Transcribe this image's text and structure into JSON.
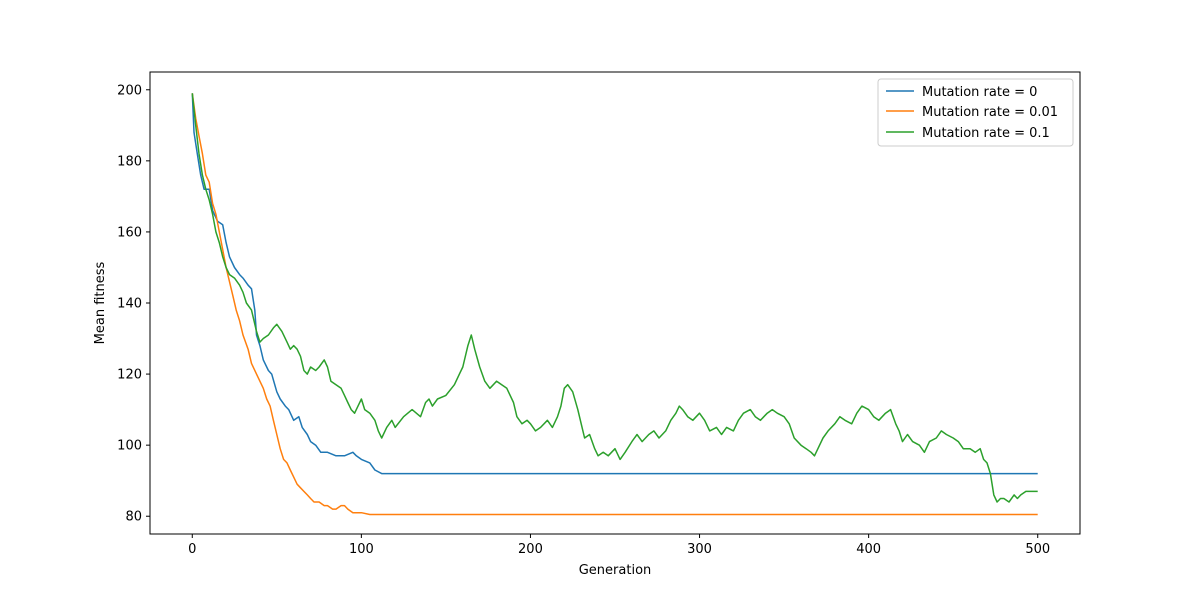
{
  "chart_data": {
    "type": "line",
    "title": "",
    "xlabel": "Generation",
    "ylabel": "Mean fitness",
    "xlim": [
      -25,
      525
    ],
    "ylim": [
      75,
      205
    ],
    "xticks": [
      0,
      100,
      200,
      300,
      400,
      500
    ],
    "yticks": [
      80,
      100,
      120,
      140,
      160,
      180,
      200
    ],
    "xtick_labels": [
      "0",
      "100",
      "200",
      "300",
      "400",
      "500"
    ],
    "ytick_labels": [
      "80",
      "100",
      "120",
      "140",
      "160",
      "180",
      "200"
    ],
    "grid": false,
    "legend_position": "top-right",
    "series": [
      {
        "name": "Mutation rate = 0",
        "color": "#1f77b4",
        "points": [
          [
            0,
            199
          ],
          [
            1,
            188
          ],
          [
            3,
            182
          ],
          [
            5,
            176
          ],
          [
            7,
            172
          ],
          [
            10,
            172
          ],
          [
            12,
            166
          ],
          [
            15,
            163
          ],
          [
            18,
            162
          ],
          [
            20,
            157
          ],
          [
            22,
            153
          ],
          [
            25,
            150
          ],
          [
            28,
            148
          ],
          [
            30,
            147
          ],
          [
            33,
            145
          ],
          [
            35,
            144
          ],
          [
            37,
            138
          ],
          [
            38,
            131
          ],
          [
            40,
            128
          ],
          [
            42,
            124
          ],
          [
            45,
            121
          ],
          [
            47,
            120
          ],
          [
            50,
            115
          ],
          [
            52,
            113
          ],
          [
            55,
            111
          ],
          [
            57,
            110
          ],
          [
            60,
            107
          ],
          [
            63,
            108
          ],
          [
            65,
            105
          ],
          [
            68,
            103
          ],
          [
            70,
            101
          ],
          [
            73,
            100
          ],
          [
            76,
            98
          ],
          [
            80,
            98
          ],
          [
            85,
            97
          ],
          [
            90,
            97
          ],
          [
            95,
            98
          ],
          [
            97,
            97
          ],
          [
            100,
            96
          ],
          [
            105,
            95
          ],
          [
            108,
            93
          ],
          [
            112,
            92
          ],
          [
            120,
            92
          ],
          [
            200,
            92
          ],
          [
            300,
            92
          ],
          [
            400,
            92
          ],
          [
            500,
            92
          ]
        ]
      },
      {
        "name": "Mutation rate = 0.01",
        "color": "#ff7f0e",
        "points": [
          [
            0,
            199
          ],
          [
            2,
            192
          ],
          [
            4,
            187
          ],
          [
            6,
            182
          ],
          [
            8,
            176
          ],
          [
            10,
            174
          ],
          [
            12,
            168
          ],
          [
            14,
            165
          ],
          [
            16,
            160
          ],
          [
            18,
            155
          ],
          [
            20,
            150
          ],
          [
            22,
            146
          ],
          [
            24,
            142
          ],
          [
            26,
            138
          ],
          [
            28,
            135
          ],
          [
            30,
            131
          ],
          [
            33,
            127
          ],
          [
            35,
            123
          ],
          [
            38,
            120
          ],
          [
            40,
            118
          ],
          [
            42,
            116
          ],
          [
            44,
            113
          ],
          [
            46,
            111
          ],
          [
            48,
            107
          ],
          [
            50,
            103
          ],
          [
            52,
            99
          ],
          [
            54,
            96
          ],
          [
            56,
            95
          ],
          [
            58,
            93
          ],
          [
            60,
            91
          ],
          [
            62,
            89
          ],
          [
            64,
            88
          ],
          [
            66,
            87
          ],
          [
            68,
            86
          ],
          [
            70,
            85
          ],
          [
            72,
            84
          ],
          [
            75,
            84
          ],
          [
            78,
            83
          ],
          [
            80,
            83
          ],
          [
            83,
            82
          ],
          [
            85,
            82
          ],
          [
            88,
            83
          ],
          [
            90,
            83
          ],
          [
            92,
            82
          ],
          [
            95,
            81
          ],
          [
            100,
            81
          ],
          [
            105,
            80.5
          ],
          [
            110,
            80.5
          ],
          [
            120,
            80.5
          ],
          [
            150,
            80.5
          ],
          [
            200,
            80.5
          ],
          [
            250,
            80.5
          ],
          [
            300,
            80.5
          ],
          [
            350,
            80.5
          ],
          [
            400,
            80.5
          ],
          [
            450,
            80.5
          ],
          [
            500,
            80.5
          ]
        ]
      },
      {
        "name": "Mutation rate = 0.1",
        "color": "#2ca02c",
        "points": [
          [
            0,
            199
          ],
          [
            2,
            190
          ],
          [
            4,
            182
          ],
          [
            6,
            176
          ],
          [
            8,
            172
          ],
          [
            10,
            169
          ],
          [
            12,
            165
          ],
          [
            14,
            160
          ],
          [
            16,
            157
          ],
          [
            18,
            153
          ],
          [
            20,
            150
          ],
          [
            22,
            148
          ],
          [
            25,
            147
          ],
          [
            28,
            145
          ],
          [
            30,
            143
          ],
          [
            32,
            140
          ],
          [
            35,
            138
          ],
          [
            38,
            132
          ],
          [
            40,
            129
          ],
          [
            42,
            130
          ],
          [
            45,
            131
          ],
          [
            48,
            133
          ],
          [
            50,
            134
          ],
          [
            53,
            132
          ],
          [
            56,
            129
          ],
          [
            58,
            127
          ],
          [
            60,
            128
          ],
          [
            62,
            127
          ],
          [
            64,
            125
          ],
          [
            66,
            121
          ],
          [
            68,
            120
          ],
          [
            70,
            122
          ],
          [
            73,
            121
          ],
          [
            75,
            122
          ],
          [
            78,
            124
          ],
          [
            80,
            122
          ],
          [
            82,
            118
          ],
          [
            85,
            117
          ],
          [
            88,
            116
          ],
          [
            90,
            114
          ],
          [
            92,
            112
          ],
          [
            94,
            110
          ],
          [
            96,
            109
          ],
          [
            98,
            111
          ],
          [
            100,
            113
          ],
          [
            102,
            110
          ],
          [
            105,
            109
          ],
          [
            108,
            107
          ],
          [
            110,
            104
          ],
          [
            112,
            102
          ],
          [
            115,
            105
          ],
          [
            118,
            107
          ],
          [
            120,
            105
          ],
          [
            125,
            108
          ],
          [
            130,
            110
          ],
          [
            135,
            108
          ],
          [
            138,
            112
          ],
          [
            140,
            113
          ],
          [
            142,
            111
          ],
          [
            145,
            113
          ],
          [
            150,
            114
          ],
          [
            155,
            117
          ],
          [
            158,
            120
          ],
          [
            160,
            122
          ],
          [
            163,
            128
          ],
          [
            165,
            131
          ],
          [
            167,
            127
          ],
          [
            170,
            122
          ],
          [
            173,
            118
          ],
          [
            176,
            116
          ],
          [
            180,
            118
          ],
          [
            183,
            117
          ],
          [
            186,
            116
          ],
          [
            190,
            112
          ],
          [
            192,
            108
          ],
          [
            195,
            106
          ],
          [
            198,
            107
          ],
          [
            200,
            106
          ],
          [
            203,
            104
          ],
          [
            206,
            105
          ],
          [
            210,
            107
          ],
          [
            213,
            105
          ],
          [
            216,
            108
          ],
          [
            218,
            111
          ],
          [
            220,
            116
          ],
          [
            222,
            117
          ],
          [
            225,
            115
          ],
          [
            228,
            110
          ],
          [
            230,
            106
          ],
          [
            232,
            102
          ],
          [
            235,
            103
          ],
          [
            238,
            99
          ],
          [
            240,
            97
          ],
          [
            243,
            98
          ],
          [
            246,
            97
          ],
          [
            250,
            99
          ],
          [
            253,
            96
          ],
          [
            256,
            98
          ],
          [
            260,
            101
          ],
          [
            263,
            103
          ],
          [
            266,
            101
          ],
          [
            270,
            103
          ],
          [
            273,
            104
          ],
          [
            276,
            102
          ],
          [
            280,
            104
          ],
          [
            283,
            107
          ],
          [
            286,
            109
          ],
          [
            288,
            111
          ],
          [
            290,
            110
          ],
          [
            293,
            108
          ],
          [
            296,
            107
          ],
          [
            300,
            109
          ],
          [
            303,
            107
          ],
          [
            306,
            104
          ],
          [
            310,
            105
          ],
          [
            313,
            103
          ],
          [
            316,
            105
          ],
          [
            320,
            104
          ],
          [
            323,
            107
          ],
          [
            326,
            109
          ],
          [
            330,
            110
          ],
          [
            333,
            108
          ],
          [
            336,
            107
          ],
          [
            340,
            109
          ],
          [
            343,
            110
          ],
          [
            346,
            109
          ],
          [
            350,
            108
          ],
          [
            353,
            106
          ],
          [
            356,
            102
          ],
          [
            360,
            100
          ],
          [
            363,
            99
          ],
          [
            366,
            98
          ],
          [
            368,
            97
          ],
          [
            370,
            99
          ],
          [
            373,
            102
          ],
          [
            376,
            104
          ],
          [
            380,
            106
          ],
          [
            383,
            108
          ],
          [
            386,
            107
          ],
          [
            390,
            106
          ],
          [
            393,
            109
          ],
          [
            396,
            111
          ],
          [
            400,
            110
          ],
          [
            403,
            108
          ],
          [
            406,
            107
          ],
          [
            410,
            109
          ],
          [
            413,
            110
          ],
          [
            416,
            106
          ],
          [
            418,
            104
          ],
          [
            420,
            101
          ],
          [
            423,
            103
          ],
          [
            426,
            101
          ],
          [
            430,
            100
          ],
          [
            433,
            98
          ],
          [
            436,
            101
          ],
          [
            440,
            102
          ],
          [
            443,
            104
          ],
          [
            446,
            103
          ],
          [
            450,
            102
          ],
          [
            453,
            101
          ],
          [
            456,
            99
          ],
          [
            460,
            99
          ],
          [
            463,
            98
          ],
          [
            466,
            99
          ],
          [
            468,
            96
          ],
          [
            470,
            95
          ],
          [
            472,
            92
          ],
          [
            474,
            86
          ],
          [
            476,
            84
          ],
          [
            478,
            85
          ],
          [
            480,
            85
          ],
          [
            483,
            84
          ],
          [
            486,
            86
          ],
          [
            488,
            85
          ],
          [
            490,
            86
          ],
          [
            493,
            87
          ],
          [
            496,
            87
          ],
          [
            500,
            87
          ]
        ]
      }
    ]
  }
}
